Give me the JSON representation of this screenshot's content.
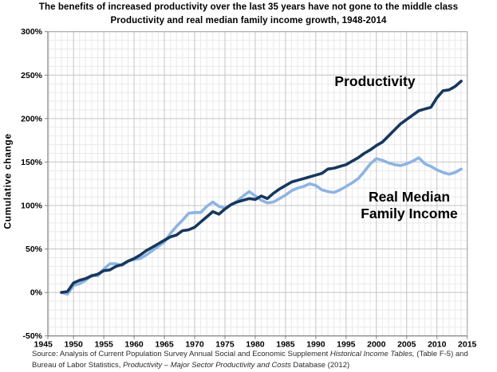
{
  "header": {
    "title": "The benefits of increased productivity over the last 35 years have not gone to the middle class",
    "subtitle": "Productivity and real median family income growth, 1948-2014"
  },
  "y_axis": {
    "label": "Cumulative change",
    "tick_labels": [
      "300%",
      "250%",
      "200%",
      "150%",
      "100%",
      "50%",
      "0%",
      "-50%"
    ],
    "tick_values": [
      300,
      250,
      200,
      150,
      100,
      50,
      0,
      -50
    ]
  },
  "x_axis": {
    "tick_labels": [
      "1945",
      "1950",
      "1955",
      "1960",
      "1965",
      "1970",
      "1975",
      "1980",
      "1985",
      "1990",
      "1995",
      "2000",
      "2005",
      "2010",
      "2015"
    ],
    "tick_values": [
      1945,
      1950,
      1955,
      1960,
      1965,
      1970,
      1975,
      1980,
      1985,
      1990,
      1995,
      2000,
      2005,
      2010,
      2015
    ]
  },
  "annotations": {
    "productivity_label": "Productivity",
    "income_label_line1": "Real Median",
    "income_label_line2": "Family Income"
  },
  "source": {
    "line1_start": "Source:  Analysis of Current Population Survey Annual Social and Economic Supplement ",
    "line1_italic": "Historical Income Tables,",
    "line1_end": " (Table F-5) and",
    "line2_start": "Bureau of Labor Statistics, ",
    "line2_italic": "Productivity – Major Sector Productivity and Costs",
    "line2_end": " Database (2012)"
  },
  "colors": {
    "productivity_line": "#17375D",
    "income_line": "#8DB4E2",
    "grid_minor": "#E9E9E9",
    "grid_major": "#C4C4C4",
    "plot_border": "#A6A6A6",
    "axis_line": "#808080",
    "background": "#FFFFFF",
    "text": "#000000"
  },
  "chart_data": {
    "type": "line",
    "title": "The benefits of increased productivity over the last 35 years have not gone to the middle class",
    "subtitle": "Productivity and real median family income growth, 1948-2014",
    "xlabel": "",
    "ylabel": "Cumulative change",
    "ylim": [
      -50,
      300
    ],
    "xlim": [
      1945,
      2015
    ],
    "grid": "on",
    "legend_position": "inline-annotations",
    "x": [
      1948,
      1949,
      1950,
      1951,
      1952,
      1953,
      1954,
      1955,
      1956,
      1957,
      1958,
      1959,
      1960,
      1961,
      1962,
      1963,
      1964,
      1965,
      1966,
      1967,
      1968,
      1969,
      1970,
      1971,
      1972,
      1973,
      1974,
      1975,
      1976,
      1977,
      1978,
      1979,
      1980,
      1981,
      1982,
      1983,
      1984,
      1985,
      1986,
      1987,
      1988,
      1989,
      1990,
      1991,
      1992,
      1993,
      1994,
      1995,
      1996,
      1997,
      1998,
      1999,
      2000,
      2001,
      2002,
      2003,
      2004,
      2005,
      2006,
      2007,
      2008,
      2009,
      2010,
      2011,
      2012,
      2013,
      2014
    ],
    "series": [
      {
        "name": "Productivity",
        "unit": "percent cumulative change since 1948",
        "values": [
          0,
          1,
          11,
          14,
          16,
          19,
          21,
          25,
          26,
          30,
          32,
          36,
          39,
          43,
          48,
          52,
          56,
          60,
          64,
          66,
          71,
          72,
          75,
          81,
          87,
          93,
          90,
          96,
          101,
          104,
          106,
          108,
          107,
          111,
          108,
          114,
          119,
          123,
          127,
          129,
          131,
          133,
          135,
          137,
          142,
          143,
          145,
          147,
          151,
          155,
          160,
          164,
          169,
          173,
          180,
          187,
          194,
          199,
          204,
          209,
          211,
          213,
          224,
          232,
          233,
          237,
          243
        ]
      },
      {
        "name": "Real Median Family Income",
        "unit": "percent cumulative change since 1948",
        "values": [
          0,
          -2,
          8,
          10,
          14,
          20,
          19,
          27,
          33,
          33,
          31,
          36,
          38,
          39,
          43,
          48,
          53,
          58,
          68,
          76,
          83,
          91,
          92,
          92,
          99,
          104,
          99,
          97,
          101,
          105,
          111,
          116,
          111,
          106,
          103,
          104,
          108,
          112,
          117,
          120,
          122,
          125,
          123,
          118,
          116,
          115,
          118,
          122,
          126,
          131,
          139,
          148,
          154,
          152,
          149,
          147,
          146,
          148,
          151,
          155,
          148,
          145,
          141,
          138,
          136,
          138,
          142
        ]
      }
    ]
  }
}
